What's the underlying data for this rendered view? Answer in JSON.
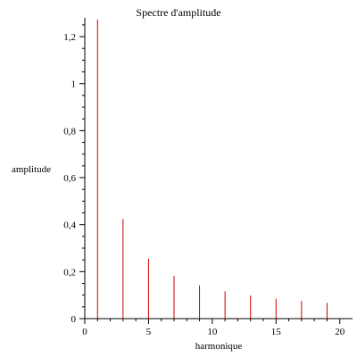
{
  "chart_data": {
    "type": "bar",
    "title": "Spectre d'amplitude",
    "xlabel": "harmonique",
    "ylabel": "amplitude",
    "xlim": [
      0,
      21
    ],
    "ylim": [
      0,
      1.28
    ],
    "x_ticks": [
      0,
      5,
      10,
      15,
      20
    ],
    "x_tick_labels": [
      "0",
      "5",
      "10",
      "15",
      "20"
    ],
    "y_ticks": [
      0,
      0.2,
      0.4,
      0.6,
      0.8,
      1,
      1.2
    ],
    "y_tick_labels": [
      "0",
      "0,2",
      "0,4",
      "0,6",
      "0,8",
      "1",
      "1,2"
    ],
    "grid": false,
    "legend": "none",
    "series": [
      {
        "x": [
          1,
          3,
          5,
          7,
          9,
          11,
          13,
          15,
          17,
          19
        ],
        "values": [
          1.273,
          0.424,
          0.255,
          0.182,
          0.141,
          0.116,
          0.098,
          0.085,
          0.075,
          0.067
        ]
      }
    ],
    "colors": {
      "bars": "#cc0000",
      "axes": "#000000"
    }
  }
}
